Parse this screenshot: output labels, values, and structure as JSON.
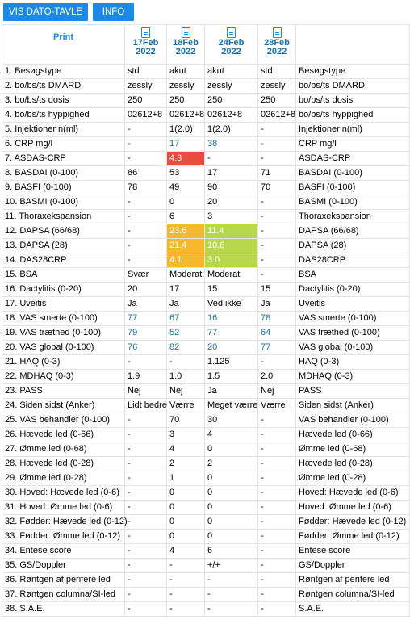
{
  "toolbar": {
    "vis_dato_tavle": "VIS DATO-TAVLE",
    "info": "INFO"
  },
  "header": {
    "print": "Print",
    "dates": [
      {
        "day": "17Feb",
        "year": "2022"
      },
      {
        "day": "18Feb",
        "year": "2022"
      },
      {
        "day": "24Feb",
        "year": "2022"
      },
      {
        "day": "28Feb",
        "year": "2022"
      }
    ]
  },
  "colors": {
    "accent": "#1e88e5",
    "red": "#e74c3c",
    "orange": "#f5b82e",
    "green": "#b7d84b"
  },
  "rows": [
    {
      "label": "1. Besøgstype",
      "values": [
        "std",
        "akut",
        "akut",
        "std"
      ],
      "right": "Besøgstype"
    },
    {
      "label": "2. bo/bs/ts DMARD",
      "values": [
        "zessly",
        "zessly",
        "zessly",
        "zessly"
      ],
      "right": "bo/bs/ts DMARD"
    },
    {
      "label": "3. bo/bs/ts dosis",
      "values": [
        "250",
        "250",
        "250",
        "250"
      ],
      "right": "bo/bs/ts dosis"
    },
    {
      "label": "4. bo/bs/ts hyppighed",
      "values": [
        "02612+8",
        "02612+8",
        "02612+8",
        "02612+8"
      ],
      "right": "bo/bs/ts hyppighed"
    },
    {
      "label": "5. Injektioner n(ml)",
      "values": [
        "-",
        "1(2.0)",
        "1(2.0)",
        "-"
      ],
      "right": "Injektioner n(ml)"
    },
    {
      "label": "6. CRP mg/l",
      "values": [
        "-",
        "17",
        "38",
        "-"
      ],
      "right": "CRP mg/l"
    },
    {
      "label": "7. ASDAS-CRP",
      "values": [
        "-",
        "4.3",
        "-",
        "-"
      ],
      "right": "ASDAS-CRP"
    },
    {
      "label": "8. BASDAI (0-100)",
      "values": [
        "86",
        "53",
        "17",
        "71"
      ],
      "right": "BASDAI (0-100)"
    },
    {
      "label": "9. BASFI (0-100)",
      "values": [
        "78",
        "49",
        "90",
        "70"
      ],
      "right": "BASFI (0-100)"
    },
    {
      "label": "10. BASMI (0-100)",
      "values": [
        "-",
        "0",
        "20",
        "-"
      ],
      "right": "BASMI (0-100)"
    },
    {
      "label": "11. Thoraxekspansion",
      "values": [
        "-",
        "6",
        "3",
        "-"
      ],
      "right": "Thoraxekspansion"
    },
    {
      "label": "12. DAPSA (66/68)",
      "values": [
        "-",
        "23.6",
        "11.4",
        "-"
      ],
      "right": "DAPSA (66/68)"
    },
    {
      "label": "13. DAPSA (28)",
      "values": [
        "-",
        "21.4",
        "10.6",
        "-"
      ],
      "right": "DAPSA (28)"
    },
    {
      "label": "14. DAS28CRP",
      "values": [
        "-",
        "4.1",
        "3.0",
        "-"
      ],
      "right": "DAS28CRP"
    },
    {
      "label": "15. BSA",
      "values": [
        "Svær",
        "Moderat",
        "Moderat",
        "-"
      ],
      "right": "BSA"
    },
    {
      "label": "16. Dactylitis (0-20)",
      "values": [
        "20",
        "17",
        "15",
        "15"
      ],
      "right": "Dactylitis (0-20)"
    },
    {
      "label": "17. Uveitis",
      "values": [
        "Ja",
        "Ja",
        "Ved ikke",
        "Ja"
      ],
      "right": "Uveitis"
    },
    {
      "label": "18. VAS smerte (0-100)",
      "values": [
        "77",
        "67",
        "16",
        "78"
      ],
      "right": "VAS smerte (0-100)"
    },
    {
      "label": "19. VAS træthed (0-100)",
      "values": [
        "79",
        "52",
        "77",
        "64"
      ],
      "right": "VAS træthed (0-100)"
    },
    {
      "label": "20. VAS global (0-100)",
      "values": [
        "76",
        "82",
        "20",
        "77"
      ],
      "right": "VAS global (0-100)"
    },
    {
      "label": "21. HAQ (0-3)",
      "values": [
        "-",
        "-",
        "1.125",
        "-"
      ],
      "right": "HAQ (0-3)"
    },
    {
      "label": "22. MDHAQ (0-3)",
      "values": [
        "1.9",
        "1.0",
        "1.5",
        "2.0"
      ],
      "right": "MDHAQ (0-3)"
    },
    {
      "label": "23. PASS",
      "values": [
        "Nej",
        "Nej",
        "Ja",
        "Nej"
      ],
      "right": "PASS"
    },
    {
      "label": "24. Siden sidst (Anker)",
      "values": [
        "Lidt bedre",
        "Værre",
        "Meget værre",
        "Værre"
      ],
      "right": "Siden sidst (Anker)"
    },
    {
      "label": "25. VAS behandler (0-100)",
      "values": [
        "-",
        "70",
        "30",
        "-"
      ],
      "right": "VAS behandler (0-100)"
    },
    {
      "label": "26. Hævede led (0-66)",
      "values": [
        "-",
        "3",
        "4",
        "-"
      ],
      "right": "Hævede led (0-66)"
    },
    {
      "label": "27. Ømme led (0-68)",
      "values": [
        "-",
        "4",
        "0",
        "-"
      ],
      "right": "Ømme led (0-68)"
    },
    {
      "label": "28. Hævede led (0-28)",
      "values": [
        "-",
        "2",
        "2",
        "-"
      ],
      "right": "Hævede led (0-28)"
    },
    {
      "label": "29. Ømme led (0-28)",
      "values": [
        "-",
        "1",
        "0",
        "-"
      ],
      "right": "Ømme led (0-28)"
    },
    {
      "label": "30. Hoved: Hævede led (0-6)",
      "values": [
        "-",
        "0",
        "0",
        "-"
      ],
      "right": "Hoved: Hævede led (0-6)"
    },
    {
      "label": "31. Hoved: Ømme led (0-6)",
      "values": [
        "-",
        "0",
        "0",
        "-"
      ],
      "right": "Hoved: Ømme led (0-6)"
    },
    {
      "label": "32. Fødder: Hævede led (0-12)",
      "values": [
        "-",
        "0",
        "0",
        "-"
      ],
      "right": "Fødder: Hævede led (0-12)"
    },
    {
      "label": "33. Fødder: Ømme led (0-12)",
      "values": [
        "-",
        "0",
        "0",
        "-"
      ],
      "right": "Fødder: Ømme led (0-12)"
    },
    {
      "label": "34. Entese score",
      "values": [
        "-",
        "4",
        "6",
        "-"
      ],
      "right": "Entese score"
    },
    {
      "label": "35. GS/Doppler",
      "values": [
        "-",
        "-",
        "+/+",
        "-"
      ],
      "right": "GS/Doppler"
    },
    {
      "label": "36. Røntgen af perifere led",
      "values": [
        "-",
        "-",
        "-",
        "-"
      ],
      "right": "Røntgen af perifere led"
    },
    {
      "label": "37. Røntgen columna/SI-led",
      "values": [
        "-",
        "-",
        "-",
        "-"
      ],
      "right": "Røntgen columna/SI-led"
    },
    {
      "label": "38. S.A.E.",
      "values": [
        "-",
        "-",
        "-",
        "-"
      ],
      "right": "S.A.E."
    }
  ],
  "highlights": [
    {
      "row": 6,
      "col": 1,
      "color": "red"
    },
    {
      "row": 11,
      "col": 1,
      "color": "orange"
    },
    {
      "row": 11,
      "col": 2,
      "color": "green"
    },
    {
      "row": 12,
      "col": 1,
      "color": "orange"
    },
    {
      "row": 12,
      "col": 2,
      "color": "green"
    },
    {
      "row": 13,
      "col": 1,
      "color": "orange"
    },
    {
      "row": 13,
      "col": 2,
      "color": "green"
    }
  ],
  "blue_rows": [
    5,
    17,
    18,
    19
  ]
}
